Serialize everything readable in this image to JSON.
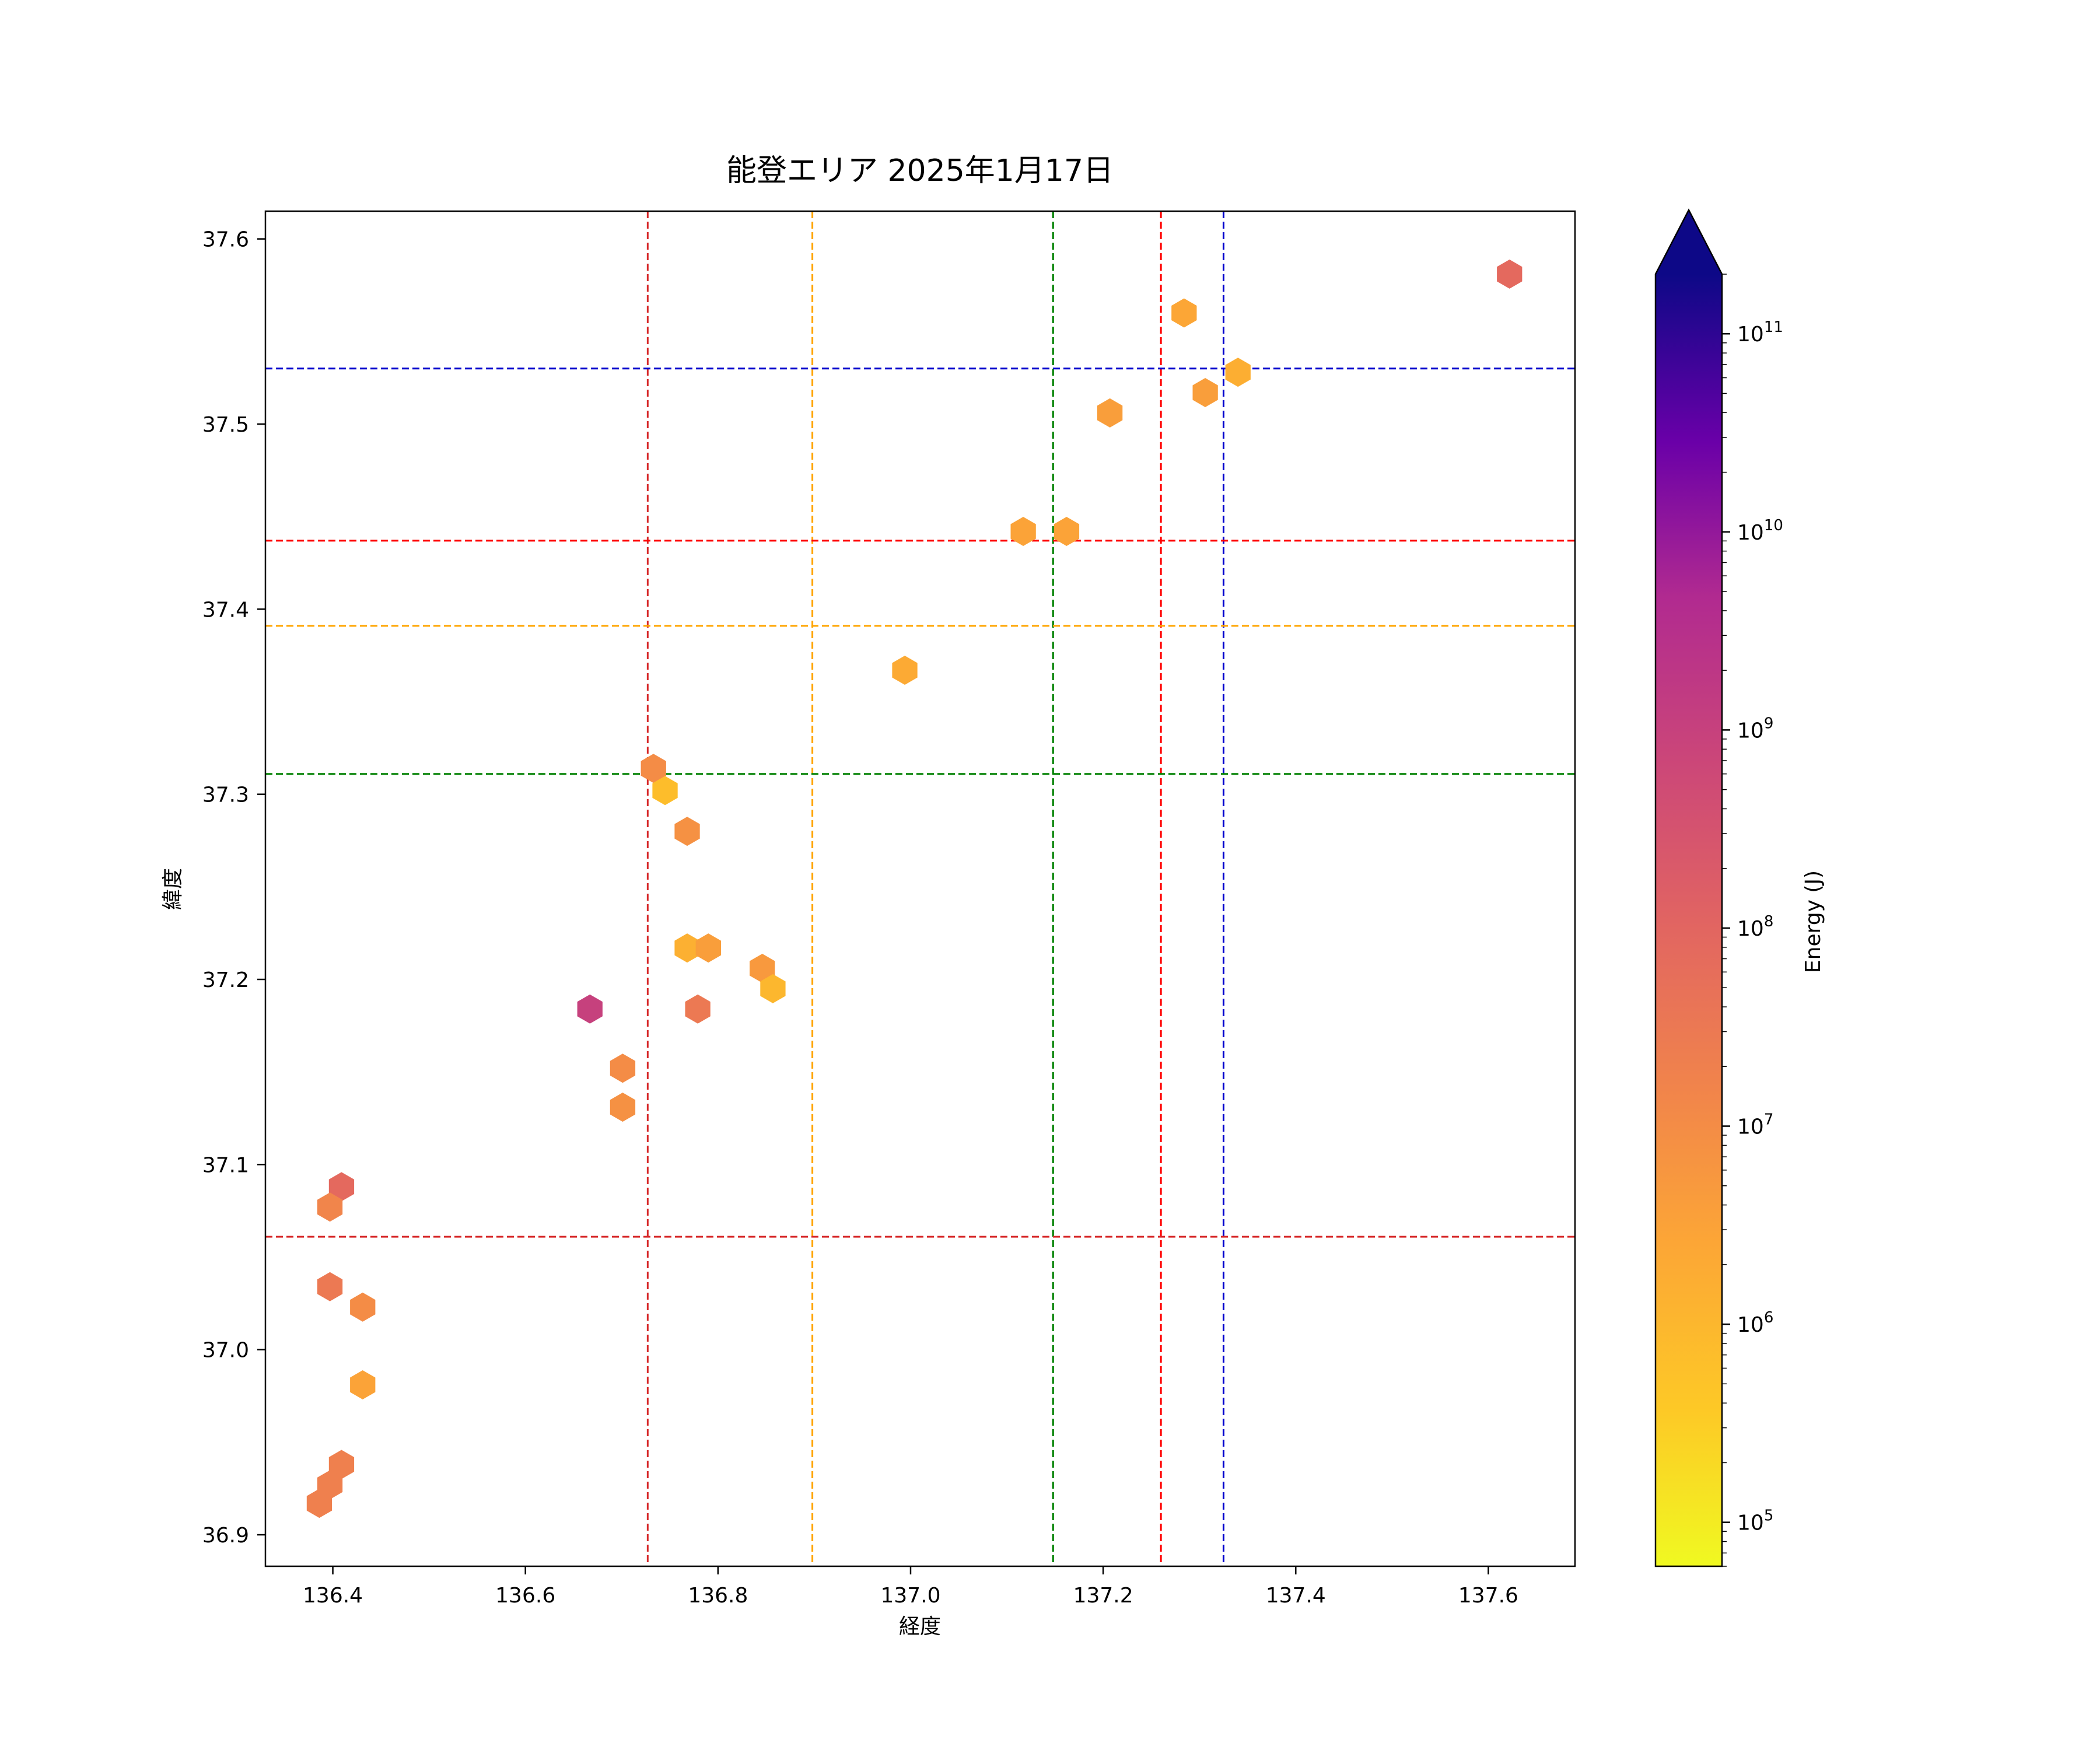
{
  "chart_data": {
    "type": "hexbin",
    "title": "能登エリア 2025年1月17日",
    "xlabel": "経度",
    "ylabel": "緯度",
    "xlim": [
      136.33,
      137.69
    ],
    "ylim": [
      36.883,
      37.615
    ],
    "xticks": [
      "136.4",
      "136.6",
      "136.8",
      "137.0",
      "137.2",
      "137.4",
      "137.6"
    ],
    "yticks": [
      "36.9",
      "37.0",
      "37.1",
      "37.2",
      "37.3",
      "37.4",
      "37.5",
      "37.6"
    ],
    "grid": false,
    "colorbar": {
      "label": "Energy (J)",
      "scale": "log",
      "colormap": "plasma_r",
      "range": [
        60000,
        200000000000
      ],
      "extend": "max",
      "ticks": [
        {
          "value": 100000,
          "base": "10",
          "exp": "5"
        },
        {
          "value": 1000000,
          "base": "10",
          "exp": "6"
        },
        {
          "value": 10000000,
          "base": "10",
          "exp": "7"
        },
        {
          "value": 100000000,
          "base": "10",
          "exp": "8"
        },
        {
          "value": 1000000000,
          "base": "10",
          "exp": "9"
        },
        {
          "value": 10000000000,
          "base": "10",
          "exp": "10"
        },
        {
          "value": 100000000000,
          "base": "10",
          "exp": "11"
        }
      ]
    },
    "hexbins": [
      {
        "lon": 137.622,
        "lat": 37.581,
        "energy": 80000000
      },
      {
        "lon": 137.284,
        "lat": 37.56,
        "energy": 2500000
      },
      {
        "lon": 137.34,
        "lat": 37.528,
        "energy": 1600000
      },
      {
        "lon": 137.306,
        "lat": 37.517,
        "energy": 4000000
      },
      {
        "lon": 137.207,
        "lat": 37.506,
        "energy": 4000000
      },
      {
        "lon": 137.117,
        "lat": 37.442,
        "energy": 3000000
      },
      {
        "lon": 137.162,
        "lat": 37.442,
        "energy": 3000000
      },
      {
        "lon": 136.994,
        "lat": 37.367,
        "energy": 2000000
      },
      {
        "lon": 136.733,
        "lat": 37.314,
        "energy": 10000000
      },
      {
        "lon": 136.745,
        "lat": 37.302,
        "energy": 700000
      },
      {
        "lon": 136.768,
        "lat": 37.28,
        "energy": 8000000
      },
      {
        "lon": 136.768,
        "lat": 37.217,
        "energy": 1500000
      },
      {
        "lon": 136.79,
        "lat": 37.217,
        "energy": 4000000
      },
      {
        "lon": 136.846,
        "lat": 37.206,
        "energy": 5000000
      },
      {
        "lon": 136.857,
        "lat": 37.195,
        "energy": 1000000
      },
      {
        "lon": 136.667,
        "lat": 37.184,
        "energy": 1000000000
      },
      {
        "lon": 136.779,
        "lat": 37.184,
        "energy": 30000000
      },
      {
        "lon": 136.701,
        "lat": 37.152,
        "energy": 10000000
      },
      {
        "lon": 136.701,
        "lat": 37.131,
        "energy": 8000000
      },
      {
        "lon": 136.409,
        "lat": 37.088,
        "energy": 80000000
      },
      {
        "lon": 136.397,
        "lat": 37.077,
        "energy": 15000000
      },
      {
        "lon": 136.397,
        "lat": 37.034,
        "energy": 30000000
      },
      {
        "lon": 136.431,
        "lat": 37.023,
        "energy": 10000000
      },
      {
        "lon": 136.431,
        "lat": 36.981,
        "energy": 3000000
      },
      {
        "lon": 136.409,
        "lat": 36.938,
        "energy": 20000000
      },
      {
        "lon": 136.397,
        "lat": 36.927,
        "energy": 20000000
      },
      {
        "lon": 136.386,
        "lat": 36.917,
        "energy": 20000000
      }
    ],
    "reference_lines": [
      {
        "axis": "x",
        "value": 136.727,
        "color": "#d62728"
      },
      {
        "axis": "x",
        "value": 136.898,
        "color": "#ffa500"
      },
      {
        "axis": "x",
        "value": 137.148,
        "color": "#008000"
      },
      {
        "axis": "x",
        "value": 137.26,
        "color": "#ff0000"
      },
      {
        "axis": "x",
        "value": 137.325,
        "color": "#0000cd"
      },
      {
        "axis": "y",
        "value": 37.53,
        "color": "#0000cd"
      },
      {
        "axis": "y",
        "value": 37.437,
        "color": "#ff0000"
      },
      {
        "axis": "y",
        "value": 37.391,
        "color": "#ffa500"
      },
      {
        "axis": "y",
        "value": 37.311,
        "color": "#008000"
      },
      {
        "axis": "y",
        "value": 37.061,
        "color": "#d62728"
      }
    ]
  }
}
